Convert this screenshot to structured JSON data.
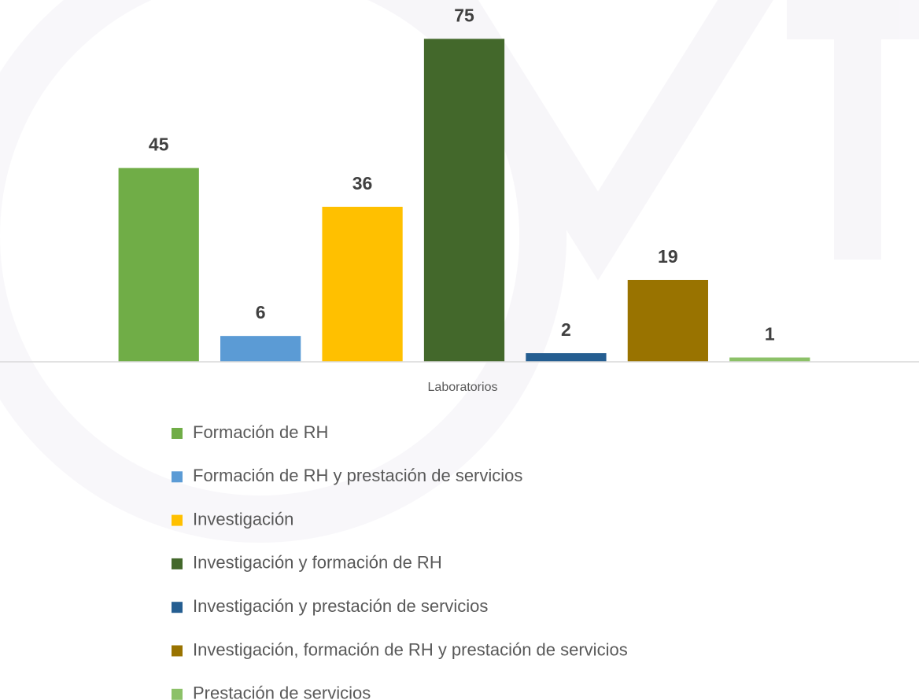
{
  "chart_data": {
    "type": "bar",
    "categories": [
      "Laboratorios"
    ],
    "ylim": [
      0,
      80
    ],
    "series": [
      {
        "name": "Formación de RH",
        "color": "#70ad47",
        "values": [
          45
        ]
      },
      {
        "name": "Formación de RH y prestación de servicios",
        "color": "#5b9bd5",
        "values": [
          6
        ]
      },
      {
        "name": "Investigación",
        "color": "#ffc000",
        "values": [
          36
        ]
      },
      {
        "name": "Investigación y formación de RH",
        "color": "#43682b",
        "values": [
          75
        ]
      },
      {
        "name": "Investigación y prestación de servicios",
        "color": "#255e91",
        "values": [
          2
        ]
      },
      {
        "name": "Investigación, formación de RH y prestación de servicios",
        "color": "#997300",
        "values": [
          19
        ]
      },
      {
        "name": "Prestación de servicios",
        "color": "#8cc168",
        "values": [
          1
        ]
      }
    ],
    "legend": "bottom"
  }
}
